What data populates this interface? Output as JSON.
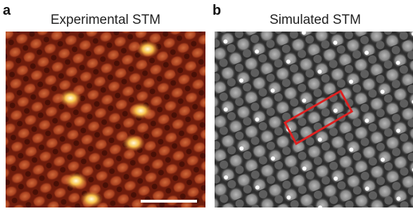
{
  "panels": [
    {
      "label": "a",
      "title": "Experimental STM"
    },
    {
      "label": "b",
      "title": "Simulated STM"
    }
  ]
}
